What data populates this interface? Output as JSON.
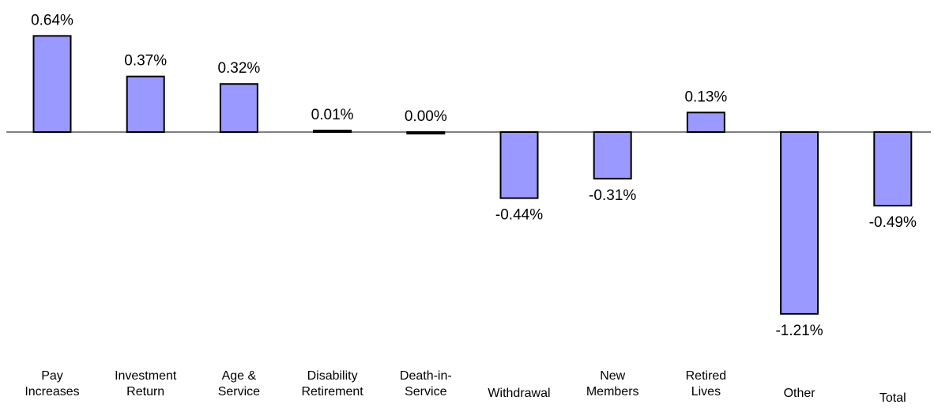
{
  "chart_data": {
    "type": "bar",
    "categories": [
      [
        "Pay",
        "Increases"
      ],
      [
        "Investment",
        "Return"
      ],
      [
        "Age &",
        "Service"
      ],
      [
        "Disability",
        "Retirement"
      ],
      [
        "Death-in-",
        "Service"
      ],
      [
        "Withdrawal"
      ],
      [
        "New",
        "Members"
      ],
      [
        "Retired",
        "Lives"
      ],
      [
        "Other"
      ],
      [
        "Total"
      ]
    ],
    "values": [
      0.64,
      0.37,
      0.32,
      0.01,
      0.0,
      -0.44,
      -0.31,
      0.13,
      -1.21,
      -0.49
    ],
    "value_labels": [
      "0.64%",
      "0.37%",
      "0.32%",
      "0.01%",
      "0.00%",
      "-0.44%",
      "-0.31%",
      "0.13%",
      "-1.21%",
      "-0.49%"
    ],
    "unit": "%",
    "title": "",
    "xlabel": "",
    "ylabel": "",
    "ylim": [
      -1.21,
      0.64
    ],
    "grid": false,
    "legend": "none",
    "colors": {
      "bar_fill": "#9999FF",
      "bar_stroke": "#000000",
      "axis": "#000000"
    }
  }
}
